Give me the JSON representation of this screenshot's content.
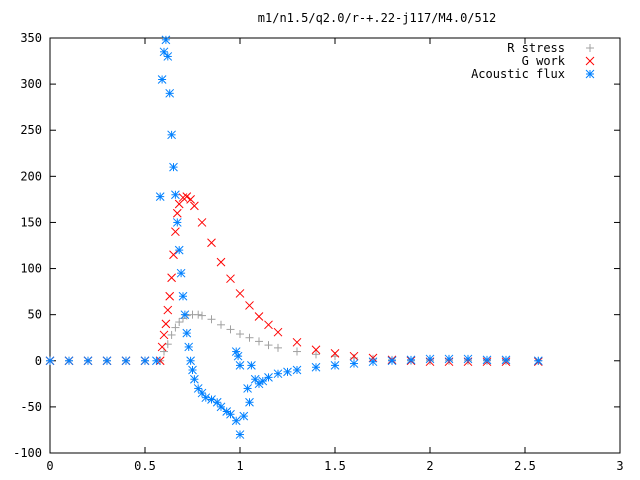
{
  "chart_data": {
    "type": "scatter",
    "title": "m1/n1.5/q2.0/r-+.22-j117/M4.0/512",
    "xlabel": "",
    "ylabel": "",
    "xlim": [
      0,
      3
    ],
    "ylim": [
      -100,
      350
    ],
    "xticks": [
      0,
      0.5,
      1,
      1.5,
      2,
      2.5,
      3
    ],
    "xtick_labels": [
      "0",
      "0.5",
      "1",
      "1.5",
      "2",
      "2.5",
      "3"
    ],
    "yticks": [
      -100,
      -50,
      0,
      50,
      100,
      150,
      200,
      250,
      300,
      350
    ],
    "ytick_labels": [
      "-100",
      "-50",
      "0",
      "50",
      "100",
      "150",
      "200",
      "250",
      "300",
      "350"
    ],
    "grid": false,
    "legend_position": "top-right",
    "series": [
      {
        "name": "R stress",
        "marker": "+",
        "color": "#a0a0a0",
        "points": [
          [
            0.0,
            0
          ],
          [
            0.1,
            0
          ],
          [
            0.2,
            0
          ],
          [
            0.3,
            0
          ],
          [
            0.4,
            0
          ],
          [
            0.5,
            0
          ],
          [
            0.58,
            0
          ],
          [
            0.6,
            10
          ],
          [
            0.62,
            18
          ],
          [
            0.64,
            28
          ],
          [
            0.66,
            36
          ],
          [
            0.68,
            42
          ],
          [
            0.7,
            46
          ],
          [
            0.72,
            49
          ],
          [
            0.75,
            50
          ],
          [
            0.78,
            50
          ],
          [
            0.8,
            49
          ],
          [
            0.85,
            45
          ],
          [
            0.9,
            39
          ],
          [
            0.95,
            34
          ],
          [
            1.0,
            29
          ],
          [
            1.05,
            25
          ],
          [
            1.1,
            21
          ],
          [
            1.15,
            17
          ],
          [
            1.2,
            14
          ],
          [
            1.3,
            10
          ],
          [
            1.4,
            7
          ],
          [
            1.5,
            5
          ],
          [
            1.6,
            3
          ],
          [
            1.7,
            2
          ],
          [
            1.8,
            1
          ],
          [
            1.9,
            0
          ],
          [
            2.0,
            0
          ],
          [
            2.1,
            0
          ],
          [
            2.2,
            0
          ],
          [
            2.3,
            0
          ],
          [
            2.4,
            0
          ],
          [
            2.57,
            0
          ]
        ]
      },
      {
        "name": "G work",
        "marker": "x",
        "color": "#ff0000",
        "points": [
          [
            0.0,
            0
          ],
          [
            0.1,
            0
          ],
          [
            0.2,
            0
          ],
          [
            0.3,
            0
          ],
          [
            0.4,
            0
          ],
          [
            0.5,
            0
          ],
          [
            0.58,
            0
          ],
          [
            0.59,
            15
          ],
          [
            0.6,
            28
          ],
          [
            0.61,
            40
          ],
          [
            0.62,
            55
          ],
          [
            0.63,
            70
          ],
          [
            0.64,
            90
          ],
          [
            0.65,
            115
          ],
          [
            0.66,
            140
          ],
          [
            0.67,
            160
          ],
          [
            0.68,
            170
          ],
          [
            0.7,
            177
          ],
          [
            0.72,
            178
          ],
          [
            0.74,
            175
          ],
          [
            0.76,
            168
          ],
          [
            0.8,
            150
          ],
          [
            0.85,
            128
          ],
          [
            0.9,
            107
          ],
          [
            0.95,
            89
          ],
          [
            1.0,
            73
          ],
          [
            1.05,
            60
          ],
          [
            1.1,
            48
          ],
          [
            1.15,
            39
          ],
          [
            1.2,
            31
          ],
          [
            1.3,
            20
          ],
          [
            1.4,
            12
          ],
          [
            1.5,
            8
          ],
          [
            1.6,
            5
          ],
          [
            1.7,
            3
          ],
          [
            1.8,
            1
          ],
          [
            1.9,
            0
          ],
          [
            2.0,
            -1
          ],
          [
            2.1,
            -1
          ],
          [
            2.2,
            -1
          ],
          [
            2.3,
            -1
          ],
          [
            2.4,
            -1
          ],
          [
            2.57,
            -1
          ]
        ]
      },
      {
        "name": "Acoustic flux",
        "marker": "*",
        "color": "#0080ff",
        "points": [
          [
            0.0,
            0
          ],
          [
            0.1,
            0
          ],
          [
            0.2,
            0
          ],
          [
            0.3,
            0
          ],
          [
            0.4,
            0
          ],
          [
            0.5,
            0
          ],
          [
            0.56,
            0
          ],
          [
            0.58,
            178
          ],
          [
            0.59,
            305
          ],
          [
            0.6,
            335
          ],
          [
            0.61,
            348
          ],
          [
            0.62,
            330
          ],
          [
            0.63,
            290
          ],
          [
            0.64,
            245
          ],
          [
            0.65,
            210
          ],
          [
            0.66,
            180
          ],
          [
            0.67,
            150
          ],
          [
            0.68,
            120
          ],
          [
            0.69,
            95
          ],
          [
            0.7,
            70
          ],
          [
            0.71,
            50
          ],
          [
            0.72,
            30
          ],
          [
            0.73,
            15
          ],
          [
            0.74,
            0
          ],
          [
            0.75,
            -10
          ],
          [
            0.76,
            -20
          ],
          [
            0.78,
            -30
          ],
          [
            0.8,
            -35
          ],
          [
            0.82,
            -40
          ],
          [
            0.85,
            -42
          ],
          [
            0.88,
            -45
          ],
          [
            0.9,
            -50
          ],
          [
            0.93,
            -55
          ],
          [
            0.95,
            -58
          ],
          [
            0.98,
            -65
          ],
          [
            1.0,
            -80
          ],
          [
            1.02,
            -60
          ],
          [
            1.04,
            -30
          ],
          [
            1.06,
            -5
          ],
          [
            1.05,
            -45
          ],
          [
            0.98,
            10
          ],
          [
            0.99,
            5
          ],
          [
            1.0,
            -5
          ],
          [
            1.08,
            -20
          ],
          [
            1.1,
            -25
          ],
          [
            1.12,
            -22
          ],
          [
            1.15,
            -18
          ],
          [
            1.2,
            -14
          ],
          [
            1.25,
            -12
          ],
          [
            1.3,
            -10
          ],
          [
            1.4,
            -7
          ],
          [
            1.5,
            -5
          ],
          [
            1.6,
            -3
          ],
          [
            1.7,
            -1
          ],
          [
            1.8,
            0
          ],
          [
            1.9,
            1
          ],
          [
            2.0,
            2
          ],
          [
            2.1,
            2
          ],
          [
            2.2,
            2
          ],
          [
            2.3,
            1
          ],
          [
            2.4,
            1
          ],
          [
            2.57,
            0
          ]
        ]
      }
    ]
  },
  "colors": {
    "background": "#ffffff",
    "axis": "#000000",
    "r_stress": "#a0a0a0",
    "g_work": "#ff0000",
    "acoustic_flux": "#0080ff"
  }
}
